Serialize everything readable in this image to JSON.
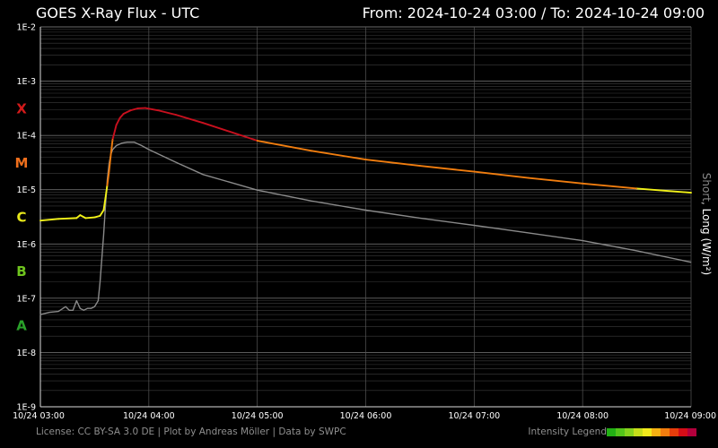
{
  "header": {
    "title": "GOES X-Ray Flux - UTC",
    "range": "From: 2024-10-24 03:00  /  To: 2024-10-24 09:00"
  },
  "footer": {
    "license": "License: CC BY-SA 3.0 DE | Plot by Andreas Möller | Data by SWPC",
    "legend_label": "Intensity Legend",
    "legend_colors": [
      "#22b014",
      "#53c41a",
      "#86d21d",
      "#c6de1a",
      "#f2ea1c",
      "#f6b112",
      "#f27d0e",
      "#e83d0b",
      "#d50d17",
      "#b3003c"
    ]
  },
  "y_axis_label": {
    "short": "Short",
    "separator": ", ",
    "long": "Long (W/m²)"
  },
  "colors": {
    "background": "#000000",
    "grid": "#3d3d3d",
    "long_class_c": "#f2f218",
    "long_class_m": "#f07d0f",
    "long_class_x": "#c8101e",
    "short": "#8a8a8a",
    "class_a": "#2aa12a",
    "class_b": "#6fc41e",
    "class_c": "#e7e71a",
    "class_m": "#ef6f1c",
    "class_x": "#d21a1a"
  },
  "flare_classes": [
    {
      "label": "A",
      "color": "#2aa12a",
      "exp": -7.5
    },
    {
      "label": "B",
      "color": "#6fc41e",
      "exp": -6.5
    },
    {
      "label": "C",
      "color": "#e7e71a",
      "exp": -5.5
    },
    {
      "label": "M",
      "color": "#ef6f1c",
      "exp": -4.5
    },
    {
      "label": "X",
      "color": "#d21a1a",
      "exp": -3.5
    }
  ],
  "chart_data": {
    "type": "line",
    "title": "GOES X-Ray Flux - UTC",
    "xlabel": "",
    "ylabel": "Short, Long (W/m²)",
    "yscale": "log",
    "ylim": [
      1e-09,
      0.01
    ],
    "xlim": [
      "2024-10-24 03:00",
      "2024-10-24 09:00"
    ],
    "grid": true,
    "y_ticks": [
      "1E-9",
      "1E-8",
      "1E-7",
      "1E-6",
      "1E-5",
      "1E-4",
      "1E-3",
      "1E-2"
    ],
    "x_ticks": [
      "10/24 03:00",
      "10/24 04:00",
      "10/24 05:00",
      "10/24 06:00",
      "10/24 07:00",
      "10/24 08:00",
      "10/24 09:00"
    ],
    "series": [
      {
        "name": "Long",
        "x": [
          "2024-10-24 03:00",
          "2024-10-24 03:10",
          "2024-10-24 03:20",
          "2024-10-24 03:22",
          "2024-10-24 03:25",
          "2024-10-24 03:30",
          "2024-10-24 03:33",
          "2024-10-24 03:35",
          "2024-10-24 03:36",
          "2024-10-24 03:37",
          "2024-10-24 03:38",
          "2024-10-24 03:39",
          "2024-10-24 03:40",
          "2024-10-24 03:42",
          "2024-10-24 03:44",
          "2024-10-24 03:46",
          "2024-10-24 03:50",
          "2024-10-24 03:54",
          "2024-10-24 03:58",
          "2024-10-24 04:05",
          "2024-10-24 04:15",
          "2024-10-24 04:30",
          "2024-10-24 05:00",
          "2024-10-24 05:30",
          "2024-10-24 06:00",
          "2024-10-24 06:30",
          "2024-10-24 07:00",
          "2024-10-24 07:30",
          "2024-10-24 08:00",
          "2024-10-24 08:30",
          "2024-10-24 09:00"
        ],
        "values": [
          2.7e-06,
          2.9e-06,
          3e-06,
          3.4e-06,
          3e-06,
          3.1e-06,
          3.3e-06,
          4.2e-06,
          7e-06,
          1.2e-05,
          2.2e-05,
          4.5e-05,
          8.5e-05,
          0.000155,
          0.00021,
          0.00025,
          0.00029,
          0.000315,
          0.00032,
          0.00029,
          0.00024,
          0.00017,
          8e-05,
          5.2e-05,
          3.6e-05,
          2.75e-05,
          2.15e-05,
          1.65e-05,
          1.3e-05,
          1.05e-05,
          8.8e-06
        ]
      },
      {
        "name": "Short",
        "x": [
          "2024-10-24 03:00",
          "2024-10-24 03:05",
          "2024-10-24 03:10",
          "2024-10-24 03:14",
          "2024-10-24 03:16",
          "2024-10-24 03:18",
          "2024-10-24 03:20",
          "2024-10-24 03:22",
          "2024-10-24 03:24",
          "2024-10-24 03:26",
          "2024-10-24 03:28",
          "2024-10-24 03:30",
          "2024-10-24 03:32",
          "2024-10-24 03:33",
          "2024-10-24 03:35",
          "2024-10-24 03:36",
          "2024-10-24 03:37",
          "2024-10-24 03:38",
          "2024-10-24 03:39",
          "2024-10-24 03:40",
          "2024-10-24 03:42",
          "2024-10-24 03:45",
          "2024-10-24 03:48",
          "2024-10-24 03:52",
          "2024-10-24 03:56",
          "2024-10-24 04:00",
          "2024-10-24 04:15",
          "2024-10-24 04:30",
          "2024-10-24 05:00",
          "2024-10-24 05:30",
          "2024-10-24 06:00",
          "2024-10-24 06:30",
          "2024-10-24 07:00",
          "2024-10-24 07:30",
          "2024-10-24 08:00",
          "2024-10-24 08:30",
          "2024-10-24 09:00"
        ],
        "values": [
          5e-08,
          5.5e-08,
          5.7e-08,
          7e-08,
          6e-08,
          6e-08,
          9e-08,
          6.5e-08,
          6e-08,
          6.5e-08,
          6.5e-08,
          7e-08,
          9e-08,
          2e-07,
          1.5e-06,
          5e-06,
          1.5e-05,
          3e-05,
          4.5e-05,
          5.5e-05,
          6.5e-05,
          7.2e-05,
          7.5e-05,
          7.5e-05,
          6.5e-05,
          5.5e-05,
          3.2e-05,
          1.9e-05,
          9.8e-06,
          6.2e-06,
          4.2e-06,
          3e-06,
          2.2e-06,
          1.6e-06,
          1.15e-06,
          7.5e-07,
          4.6e-07
        ]
      }
    ]
  }
}
